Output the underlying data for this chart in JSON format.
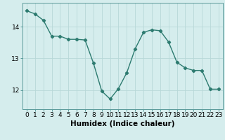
{
  "x": [
    0,
    1,
    2,
    3,
    4,
    5,
    6,
    7,
    8,
    9,
    10,
    11,
    12,
    13,
    14,
    15,
    16,
    17,
    18,
    19,
    20,
    21,
    22,
    23
  ],
  "y": [
    14.5,
    14.4,
    14.2,
    13.7,
    13.7,
    13.6,
    13.6,
    13.58,
    12.85,
    11.97,
    11.72,
    12.05,
    12.55,
    13.3,
    13.82,
    13.9,
    13.87,
    13.52,
    12.88,
    12.7,
    12.62,
    12.62,
    12.03,
    12.03
  ],
  "line_color": "#2d7b70",
  "marker": "D",
  "marker_size": 2.2,
  "bg_color": "#d5eded",
  "grid_color": "#b8d8d8",
  "xlabel": "Humidex (Indice chaleur)",
  "xlim": [
    -0.5,
    23.5
  ],
  "ylim": [
    11.4,
    14.75
  ],
  "yticks": [
    12,
    13,
    14
  ],
  "xticks": [
    0,
    1,
    2,
    3,
    4,
    5,
    6,
    7,
    8,
    9,
    10,
    11,
    12,
    13,
    14,
    15,
    16,
    17,
    18,
    19,
    20,
    21,
    22,
    23
  ],
  "xlabel_fontsize": 7.5,
  "tick_fontsize": 6.5,
  "line_width": 1.0
}
